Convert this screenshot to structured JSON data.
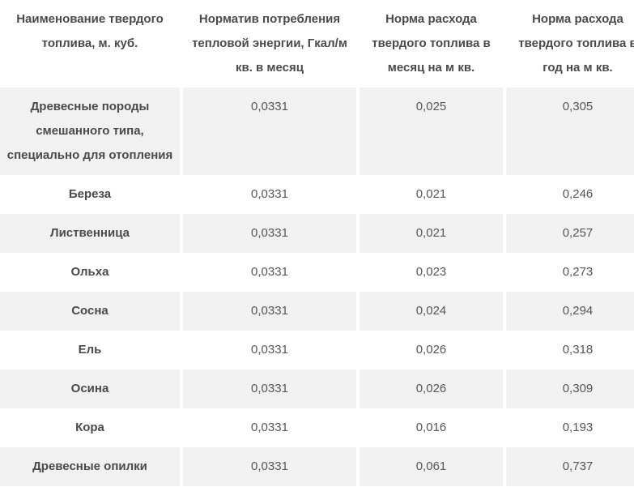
{
  "colors": {
    "stripe_row_bg": "#f1f1f2",
    "plain_row_bg": "#ffffff",
    "header_text": "#4a4a4a",
    "value_text": "#565658"
  },
  "chart_data": {
    "type": "table",
    "title": "",
    "columns": [
      "Наименование твердого топлива, м. куб.",
      "Норматив потребления тепловой энергии, Гкал/м кв. в месяц",
      "Норма расхода твердого топлива в месяц на м кв.",
      "Норма расхода твердого топлива в год на м кв."
    ],
    "rows": [
      {
        "name": "Древесные породы смешанного типа, специально для отопления",
        "values": [
          "0,0331",
          "0,025",
          "0,305"
        ]
      },
      {
        "name": "Береза",
        "values": [
          "0,0331",
          "0,021",
          "0,246"
        ]
      },
      {
        "name": "Лиственница",
        "values": [
          "0,0331",
          "0,021",
          "0,257"
        ]
      },
      {
        "name": "Ольха",
        "values": [
          "0,0331",
          "0,023",
          "0,273"
        ]
      },
      {
        "name": "Сосна",
        "values": [
          "0,0331",
          "0,024",
          "0,294"
        ]
      },
      {
        "name": "Ель",
        "values": [
          "0,0331",
          "0,026",
          "0,318"
        ]
      },
      {
        "name": "Осина",
        "values": [
          "0,0331",
          "0,026",
          "0,309"
        ]
      },
      {
        "name": "Кора",
        "values": [
          "0,0331",
          "0,016",
          "0,193"
        ]
      },
      {
        "name": "Древесные опилки",
        "values": [
          "0,0331",
          "0,061",
          "0,737"
        ]
      }
    ]
  }
}
